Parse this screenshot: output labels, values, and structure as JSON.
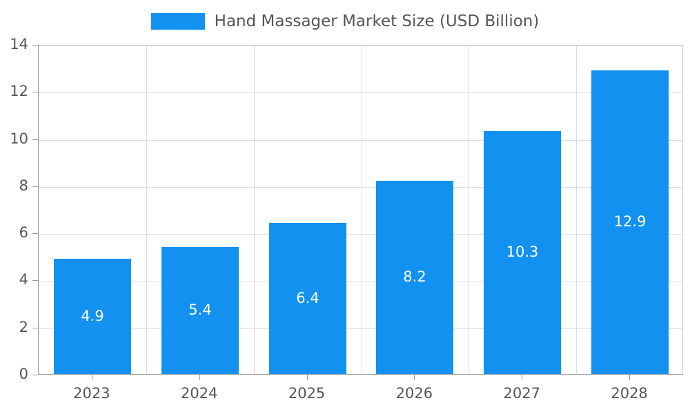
{
  "chart_data": {
    "type": "bar",
    "title": "Hand Massager Market Size (USD Billion)",
    "categories": [
      "2023",
      "2024",
      "2025",
      "2026",
      "2027",
      "2028"
    ],
    "values": [
      4.9,
      5.4,
      6.4,
      8.2,
      10.3,
      12.9
    ],
    "value_labels": [
      "4.9",
      "5.4",
      "6.4",
      "8.2",
      "10.3",
      "12.9"
    ],
    "xlabel": "",
    "ylabel": "",
    "ylim": [
      0,
      14
    ],
    "ytick_step": 2,
    "ytick_labels": [
      "0",
      "2",
      "4",
      "6",
      "8",
      "10",
      "12",
      "14"
    ],
    "grid": "on",
    "legend_position": "top-center",
    "colors": {
      "bar": "#1291f1",
      "gridline": "#dddddd",
      "axis_line": "#999999",
      "tick_text": "#555555",
      "title_text": "#555555",
      "bar_label_text": "#ffffff",
      "background": "#ffffff"
    }
  }
}
